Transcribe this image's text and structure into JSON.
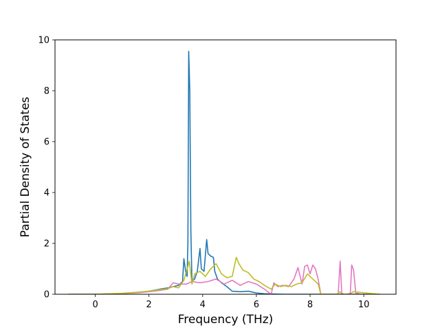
{
  "chart_data": {
    "type": "line",
    "title": "",
    "xlabel": "Frequency (THz)",
    "ylabel": "Partial Density of States",
    "xlim": [
      -1.5,
      11.2
    ],
    "ylim": [
      0,
      10
    ],
    "xticks": [
      0,
      2,
      4,
      6,
      8,
      10
    ],
    "yticks": [
      0,
      2,
      4,
      6,
      8,
      10
    ],
    "grid": false,
    "legend": "none",
    "series": [
      {
        "color": "#1f77b4",
        "x": [
          -1.0,
          0.0,
          1.0,
          1.6,
          2.0,
          2.4,
          2.7,
          2.9,
          3.1,
          3.25,
          3.3,
          3.38,
          3.42,
          3.45,
          3.48,
          3.52,
          3.56,
          3.6,
          3.7,
          3.8,
          3.9,
          3.95,
          4.05,
          4.15,
          4.2,
          4.3,
          4.4,
          4.45,
          4.55,
          4.7,
          4.9,
          5.1,
          5.4,
          5.7,
          6.0,
          6.3,
          7.0,
          10.6
        ],
        "y": [
          0.0,
          0.0,
          0.03,
          0.08,
          0.12,
          0.2,
          0.25,
          0.3,
          0.35,
          0.5,
          1.4,
          0.8,
          0.7,
          2.0,
          9.55,
          8.0,
          2.5,
          0.5,
          0.6,
          0.9,
          1.8,
          1.0,
          0.9,
          2.15,
          1.6,
          1.5,
          1.45,
          0.9,
          0.6,
          0.45,
          0.3,
          0.12,
          0.1,
          0.12,
          0.05,
          0.02,
          0.0,
          0.0
        ]
      },
      {
        "color": "#e377c2",
        "x": [
          -1.0,
          0.0,
          1.0,
          1.6,
          2.0,
          2.4,
          2.7,
          2.9,
          3.1,
          3.4,
          3.6,
          3.9,
          4.2,
          4.5,
          4.8,
          5.1,
          5.4,
          5.7,
          6.0,
          6.3,
          6.55,
          6.65,
          6.8,
          7.0,
          7.2,
          7.4,
          7.55,
          7.7,
          7.8,
          7.9,
          8.0,
          8.1,
          8.2,
          8.3,
          8.4,
          8.6,
          9.0,
          9.05,
          9.12,
          9.18,
          9.25,
          9.4,
          9.5,
          9.55,
          9.62,
          9.7,
          9.9,
          10.6
        ],
        "y": [
          0.0,
          0.0,
          0.03,
          0.06,
          0.1,
          0.15,
          0.2,
          0.45,
          0.4,
          0.4,
          0.5,
          0.45,
          0.5,
          0.6,
          0.4,
          0.55,
          0.35,
          0.5,
          0.4,
          0.2,
          0.0,
          0.45,
          0.3,
          0.35,
          0.3,
          0.6,
          1.05,
          0.4,
          1.1,
          1.15,
          0.8,
          1.15,
          1.0,
          0.6,
          0.0,
          0.0,
          0.0,
          0.05,
          1.3,
          0.05,
          0.0,
          0.0,
          0.05,
          1.15,
          0.95,
          0.05,
          0.0,
          0.0
        ]
      },
      {
        "color": "#bcbd22",
        "x": [
          -1.0,
          0.0,
          1.0,
          1.6,
          2.0,
          2.4,
          2.7,
          2.9,
          3.1,
          3.3,
          3.45,
          3.5,
          3.6,
          3.7,
          3.9,
          4.1,
          4.3,
          4.5,
          4.7,
          4.9,
          5.1,
          5.25,
          5.35,
          5.5,
          5.7,
          5.9,
          6.1,
          6.3,
          6.55,
          6.7,
          6.9,
          7.1,
          7.3,
          7.5,
          7.7,
          7.9,
          8.1,
          8.3,
          8.4,
          9.0,
          9.1,
          9.2,
          9.5,
          9.6,
          10.6
        ],
        "y": [
          0.0,
          0.0,
          0.04,
          0.08,
          0.12,
          0.18,
          0.22,
          0.3,
          0.25,
          0.55,
          1.1,
          1.3,
          0.4,
          0.8,
          0.9,
          0.7,
          1.0,
          1.2,
          0.8,
          0.65,
          0.7,
          1.45,
          1.2,
          0.95,
          0.85,
          0.6,
          0.5,
          0.35,
          0.2,
          0.4,
          0.3,
          0.35,
          0.3,
          0.4,
          0.45,
          0.8,
          0.6,
          0.4,
          0.0,
          0.0,
          0.1,
          0.0,
          0.0,
          0.1,
          0.0
        ]
      }
    ]
  }
}
